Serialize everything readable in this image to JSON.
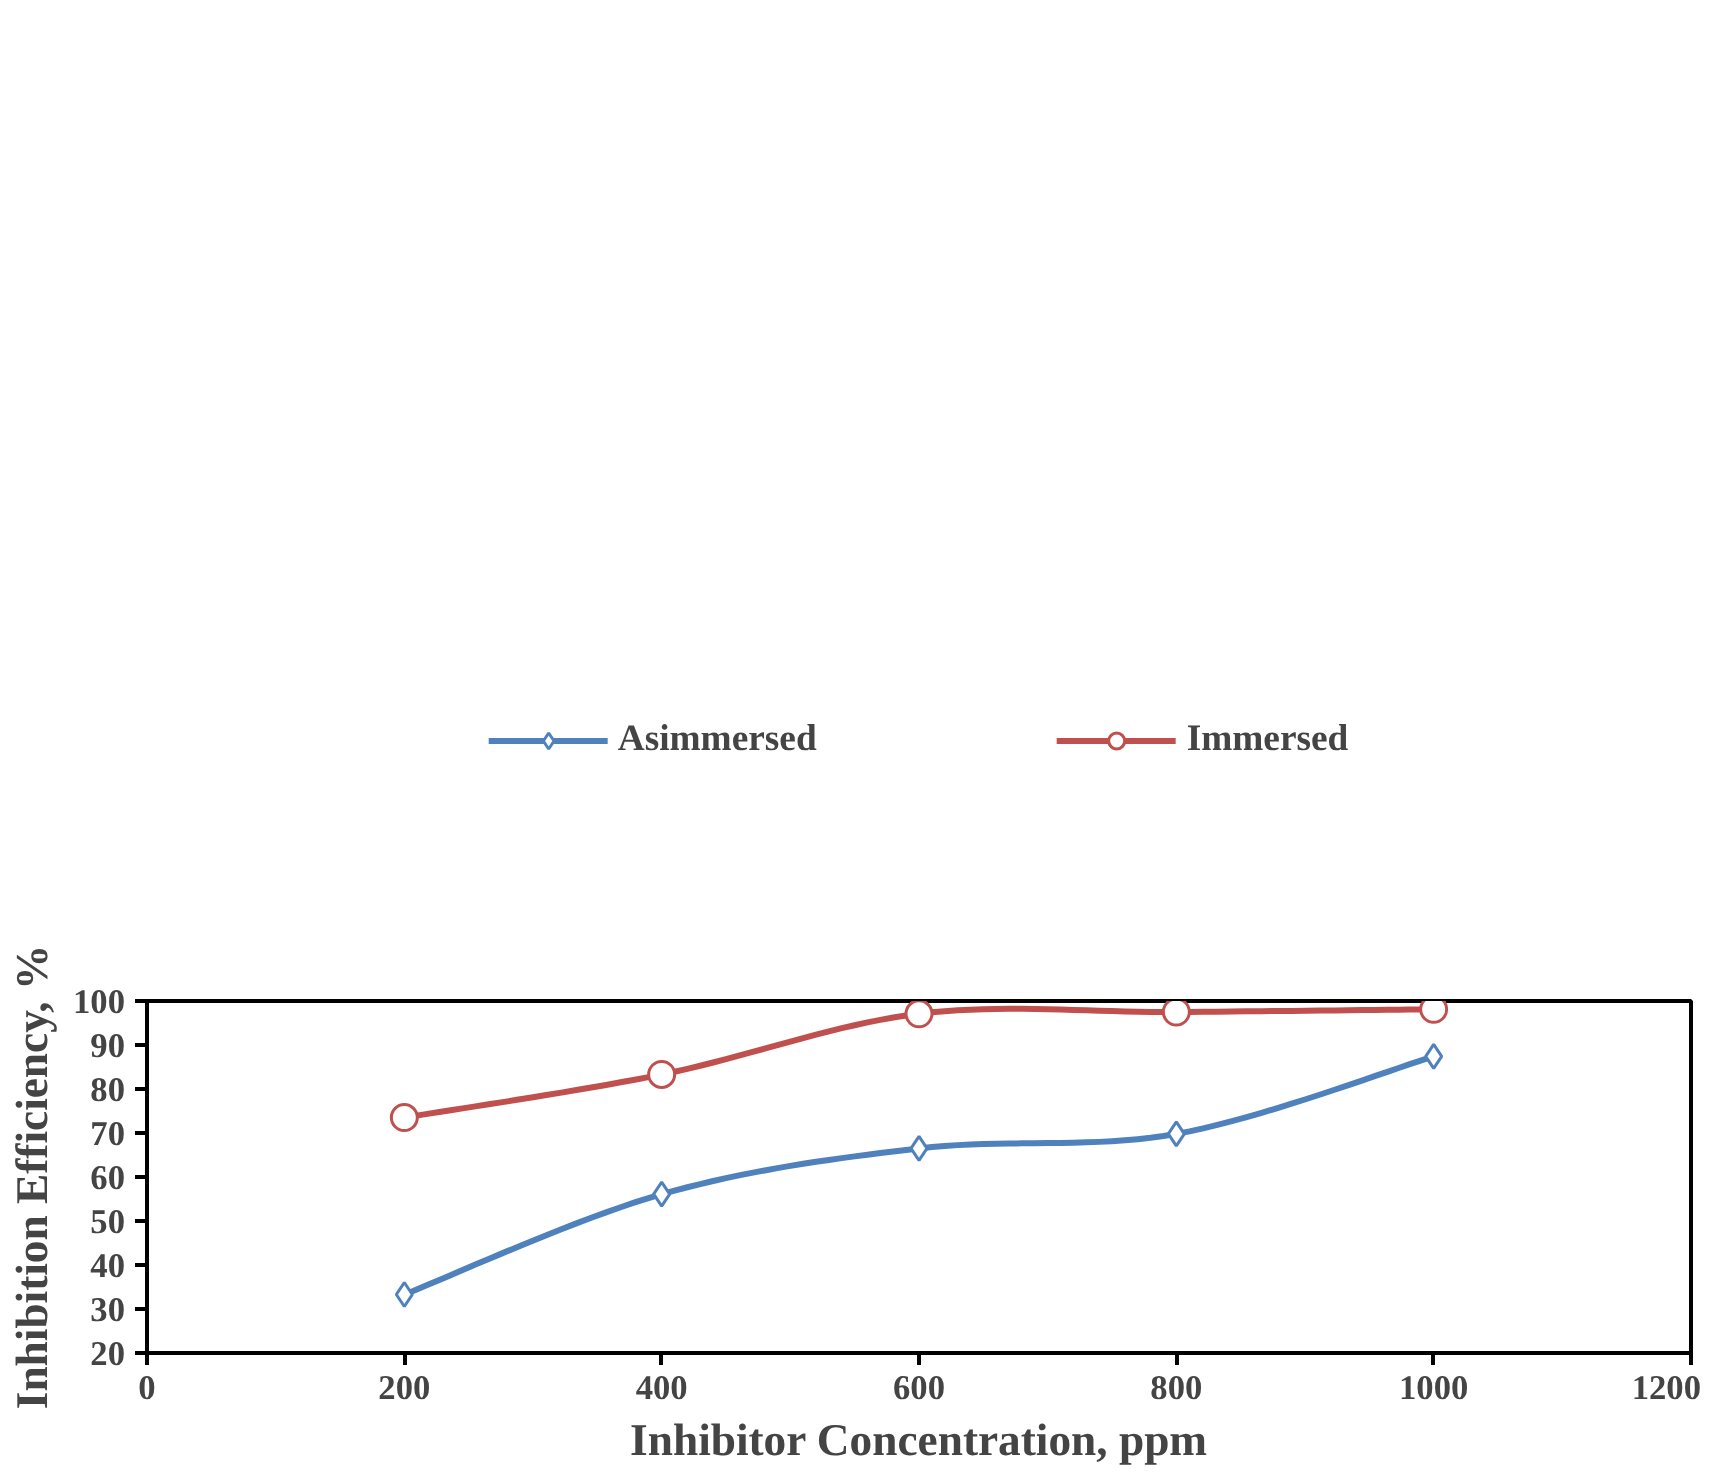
{
  "chart_data": {
    "type": "line",
    "xlabel": "Inhibitor Concentration, ppm",
    "ylabel": "Inhibition Efficiency, %",
    "x": [
      200,
      400,
      600,
      800,
      1000
    ],
    "series": [
      {
        "name": "Asimmersed",
        "color": "#4f81bd",
        "marker": "diamond",
        "values": [
          33.3,
          56.1,
          66.5,
          69.8,
          87.4
        ]
      },
      {
        "name": "Immersed",
        "color": "#c0504d",
        "marker": "circle",
        "values": [
          73.5,
          83.3,
          97.1,
          97.5,
          98.1
        ]
      }
    ],
    "xlim": [
      0,
      1200
    ],
    "xticks": [
      0,
      200,
      400,
      600,
      800,
      1000,
      1200
    ],
    "ylim": [
      20,
      100
    ],
    "yticks": [
      20,
      30,
      40,
      50,
      60,
      70,
      80,
      90,
      100
    ],
    "grid": false,
    "legend": "top",
    "line_style": "solid"
  }
}
